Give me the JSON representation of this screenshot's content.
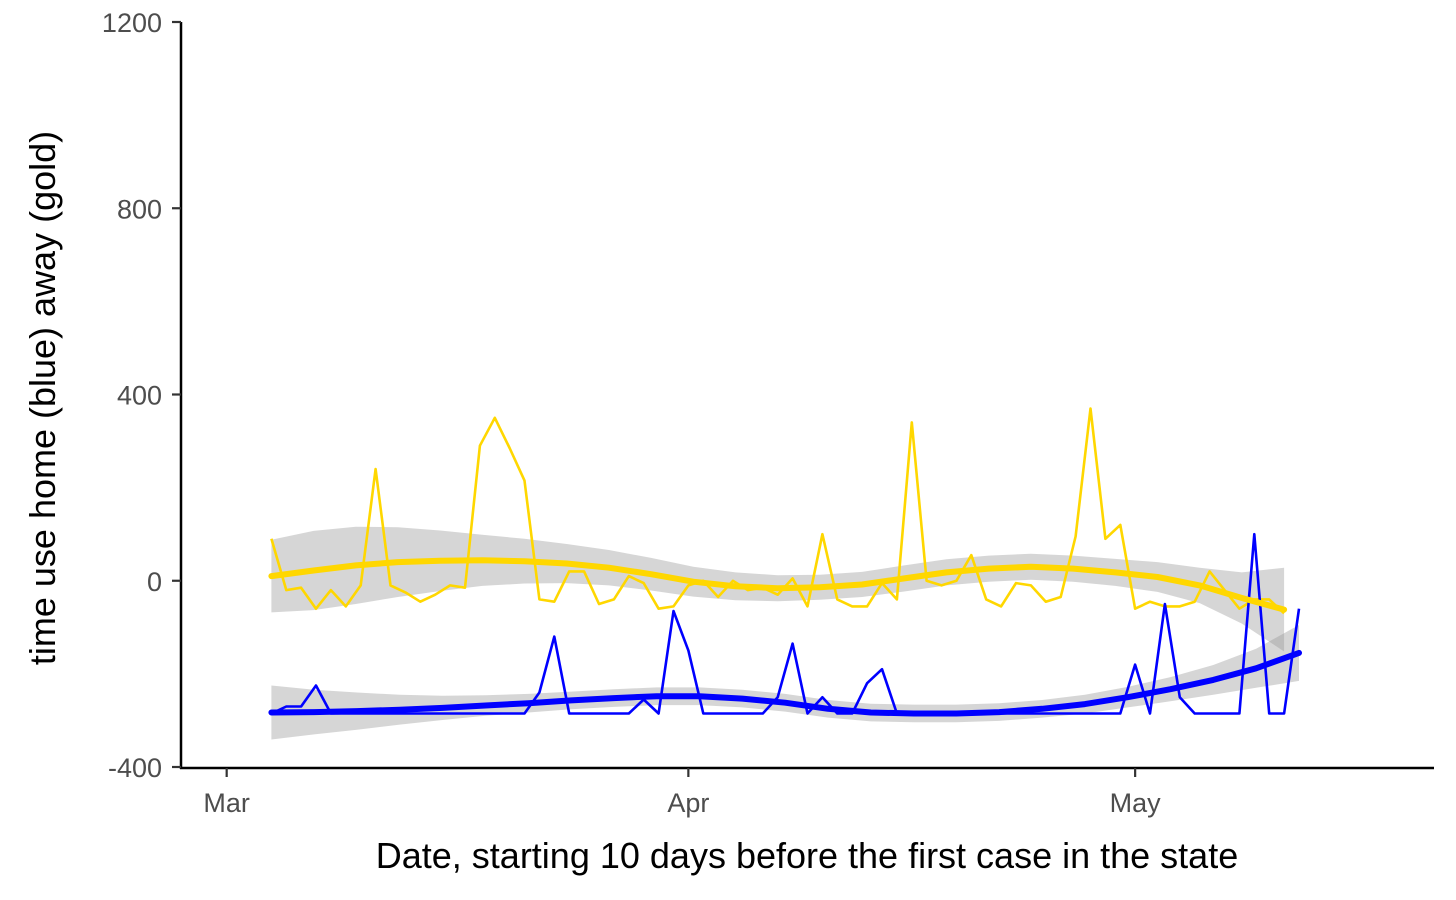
{
  "chart_data": {
    "type": "line",
    "xlabel": "Date, starting 10 days before the first case in the state",
    "ylabel": "time use home (blue) away (gold)",
    "xlim": [
      "2020-02-27",
      "2020-05-21"
    ],
    "ylim": [
      -400,
      1200
    ],
    "x_ticks": [
      {
        "date": "2020-03-01",
        "label": "Mar"
      },
      {
        "date": "2020-04-01",
        "label": "Apr"
      },
      {
        "date": "2020-05-01",
        "label": "May"
      }
    ],
    "y_ticks": [
      {
        "value": -400,
        "label": "-400"
      },
      {
        "value": 0,
        "label": "0"
      },
      {
        "value": 400,
        "label": "400"
      },
      {
        "value": 800,
        "label": "800"
      },
      {
        "value": 1200,
        "label": "1200"
      }
    ],
    "grid": false,
    "start_date": "2020-03-04",
    "series": [
      {
        "color": "#FFD700",
        "values": [
          90,
          -20,
          -15,
          -60,
          -20,
          -55,
          -10,
          240,
          -10,
          -25,
          -45,
          -30,
          -10,
          -15,
          290,
          350,
          285,
          215,
          -40,
          -45,
          20,
          20,
          -50,
          -40,
          10,
          -5,
          -60,
          -55,
          -10,
          0,
          -35,
          0,
          -20,
          -15,
          -30,
          5,
          -55,
          100,
          -40,
          -55,
          -55,
          -5,
          -40,
          340,
          0,
          -10,
          0,
          55,
          -40,
          -55,
          -5,
          -10,
          -45,
          -35,
          95,
          370,
          90,
          120,
          -60,
          -45,
          -55,
          -55,
          -45,
          20,
          -20,
          -60,
          -40,
          -40,
          -70
        ],
        "smooth": [
          10,
          22,
          33,
          40,
          43,
          44,
          42,
          37,
          28,
          14,
          -2,
          -12,
          -16,
          -14,
          -8,
          5,
          18,
          26,
          30,
          26,
          18,
          8,
          -10,
          -37,
          -62
        ],
        "band": [
          78,
          85,
          83,
          75,
          65,
          55,
          48,
          42,
          38,
          35,
          32,
          30,
          28,
          27,
          27,
          28,
          28,
          28,
          28,
          28,
          29,
          32,
          38,
          55,
          90
        ]
      },
      {
        "color": "#0000FF",
        "values": [
          -285,
          -270,
          -270,
          -225,
          -285,
          -285,
          -285,
          -285,
          -285,
          -285,
          -285,
          -285,
          -285,
          -285,
          -285,
          -285,
          -285,
          -285,
          -240,
          -120,
          -285,
          -285,
          -285,
          -285,
          -285,
          -255,
          -285,
          -65,
          -150,
          -285,
          -285,
          -285,
          -285,
          -285,
          -250,
          -135,
          -285,
          -250,
          -285,
          -285,
          -220,
          -190,
          -285,
          -285,
          -285,
          -285,
          -285,
          -285,
          -285,
          -285,
          -285,
          -285,
          -285,
          -285,
          -285,
          -285,
          -285,
          -285,
          -180,
          -285,
          -50,
          -250,
          -285,
          -285,
          -285,
          -285,
          100,
          -285,
          -285,
          -60
        ],
        "smooth": [
          -283,
          -282,
          -280,
          -277,
          -273,
          -268,
          -263,
          -257,
          -252,
          -248,
          -248,
          -253,
          -262,
          -275,
          -283,
          -285,
          -285,
          -282,
          -275,
          -265,
          -250,
          -233,
          -213,
          -188,
          -155
        ],
        "band": [
          58,
          48,
          40,
          32,
          26,
          22,
          20,
          19,
          19,
          19,
          19,
          19,
          19,
          19,
          19,
          19,
          19,
          19,
          19,
          20,
          22,
          26,
          32,
          42,
          60
        ]
      }
    ]
  }
}
